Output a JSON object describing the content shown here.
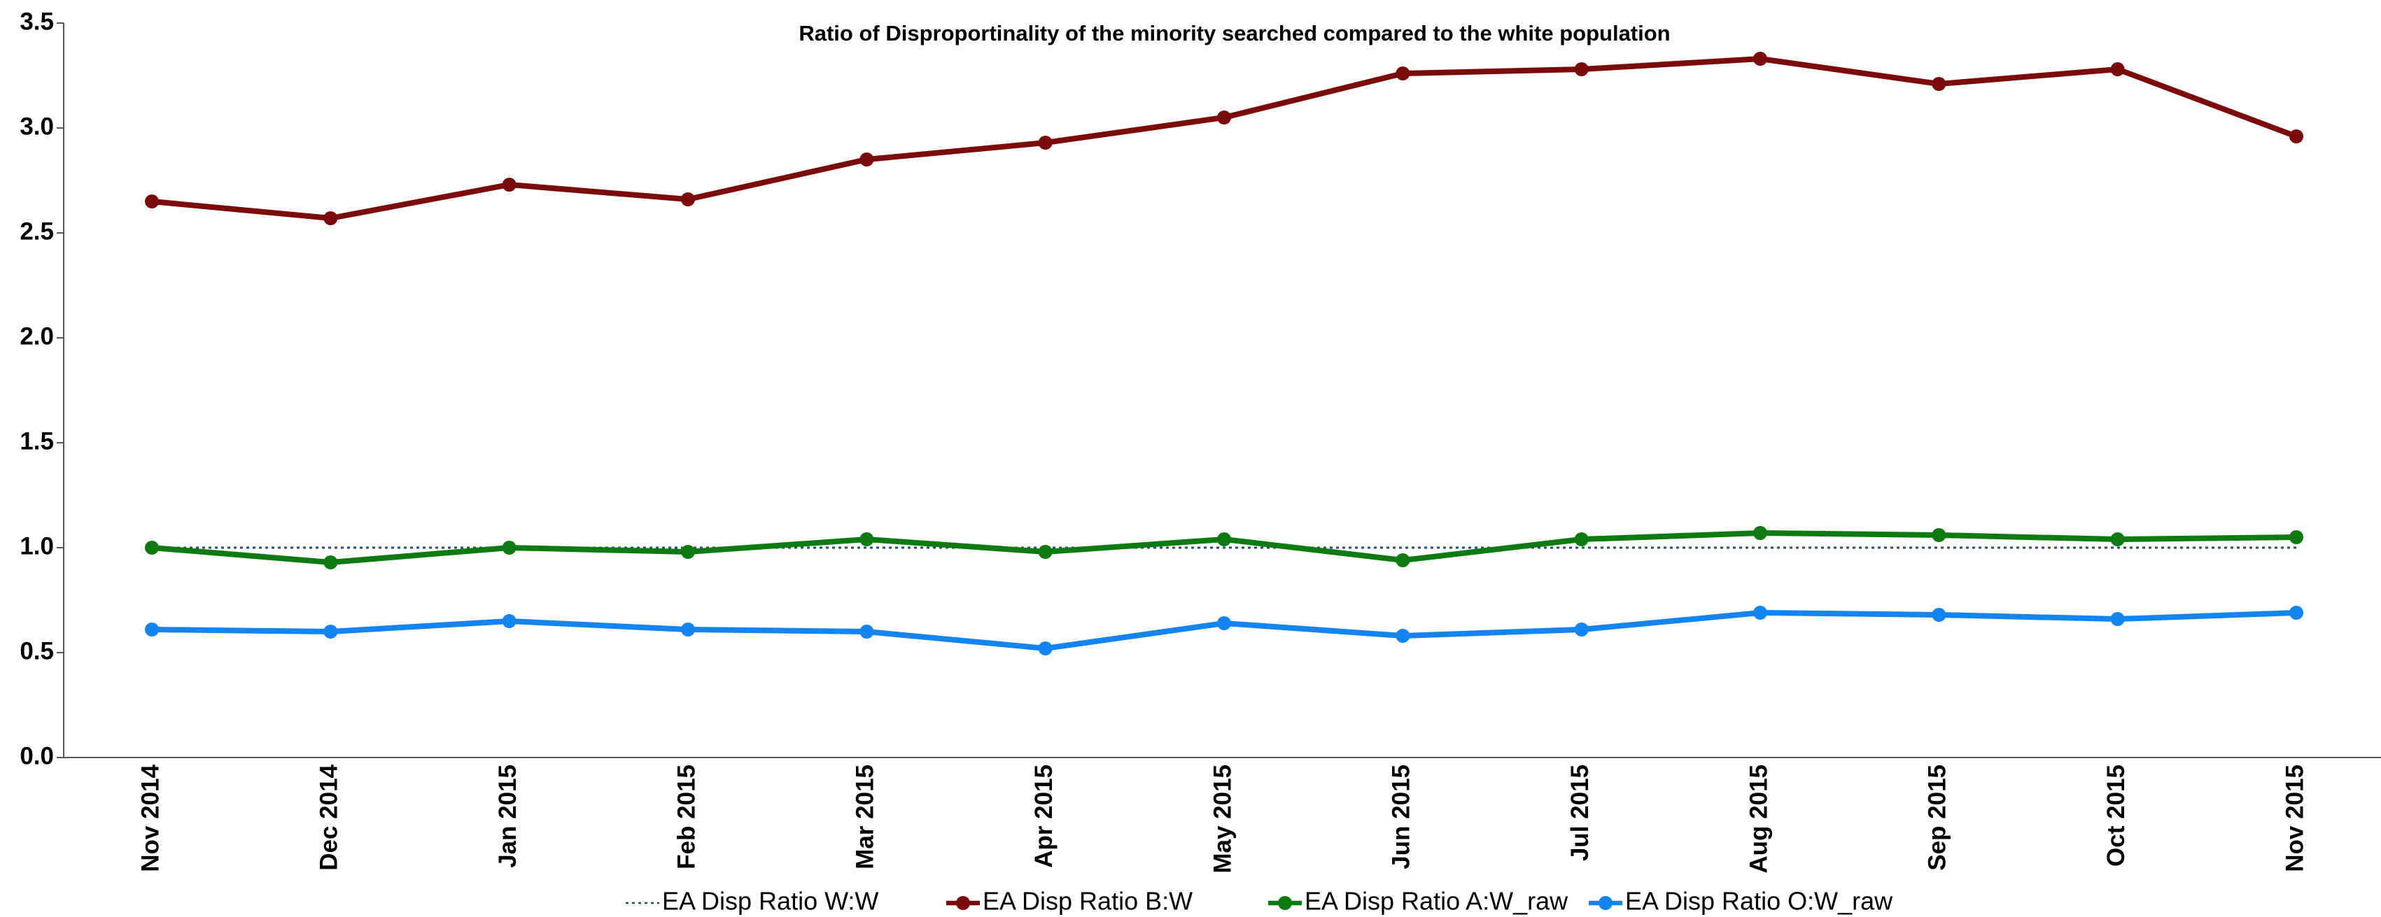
{
  "chart_data": {
    "type": "line",
    "title": "Ratio of Disproportinality of the minority searched compared to the white population",
    "categories": [
      "Nov 2014",
      "Dec 2014",
      "Jan 2015",
      "Feb 2015",
      "Mar 2015",
      "Apr 2015",
      "May 2015",
      "Jun 2015",
      "Jul 2015",
      "Aug 2015",
      "Sep 2015",
      "Oct 2015",
      "Nov 2015"
    ],
    "series": [
      {
        "name": "EA Disp Ratio W:W",
        "color": "#1f4e79",
        "dash": "dotted",
        "marker": "none",
        "values": [
          1,
          1,
          1,
          1,
          1,
          1,
          1,
          1,
          1,
          1,
          1,
          1,
          1
        ]
      },
      {
        "name": "EA Disp Ratio B:W",
        "color": "#7b0a0a",
        "dash": "solid",
        "marker": "circle",
        "values": [
          2.65,
          2.57,
          2.73,
          2.66,
          2.85,
          2.93,
          3.05,
          3.26,
          3.28,
          3.33,
          3.21,
          3.28,
          2.96
        ]
      },
      {
        "name": "EA Disp Ratio A:W_raw",
        "color": "#0f7a12",
        "dash": "solid",
        "marker": "circle",
        "values": [
          1.0,
          0.93,
          1.0,
          0.98,
          1.04,
          0.98,
          1.04,
          0.94,
          1.04,
          1.07,
          1.06,
          1.04,
          1.05
        ]
      },
      {
        "name": "EA Disp Ratio O:W_raw",
        "color": "#1484f0",
        "dash": "solid",
        "marker": "circle",
        "values": [
          0.61,
          0.6,
          0.65,
          0.61,
          0.6,
          0.52,
          0.64,
          0.58,
          0.61,
          0.69,
          0.68,
          0.66,
          0.69
        ]
      }
    ],
    "ylim": [
      0,
      3.5
    ],
    "yticks": [
      {
        "value": 0,
        "label": "0.0"
      },
      {
        "value": 0.5,
        "label": "0.5"
      },
      {
        "value": 1,
        "label": "1.0"
      },
      {
        "value": 1.5,
        "label": "1.5"
      },
      {
        "value": 2,
        "label": "2.0"
      },
      {
        "value": 2.5,
        "label": "2.5"
      },
      {
        "value": 3,
        "label": "3.0"
      },
      {
        "value": 3.5,
        "label": "3.5"
      }
    ],
    "grid": false,
    "legend": "bottom"
  }
}
